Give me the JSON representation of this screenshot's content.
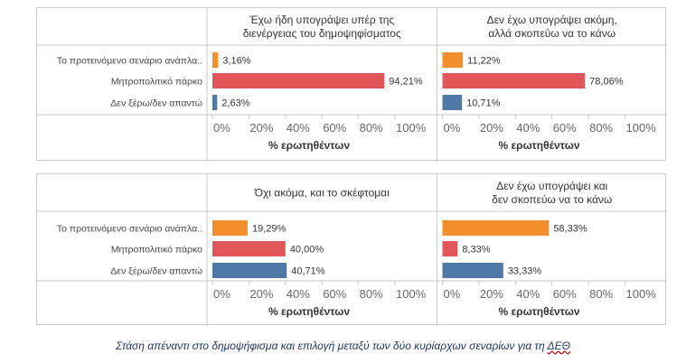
{
  "chart_data": [
    {
      "type": "bar",
      "orientation": "horizontal",
      "title": "Έχω ήδη υπογράψει υπέρ της διενέργειας του δημοψηφίσματος",
      "categories": [
        "Το προτεινόμενο σενάριο ανάπλα..",
        "Μητροπολιτικό πάρκο",
        "Δεν ξέρω/δεν απαντώ"
      ],
      "values": [
        3.16,
        94.21,
        2.63
      ],
      "labels": [
        "3,16%",
        "94,21%",
        "2,63%"
      ],
      "colors": [
        "#f28e2b",
        "#e15759",
        "#4e79a7"
      ],
      "xlabel": "% ερωτηθέντων",
      "xlim": [
        0,
        100
      ],
      "ticks": [
        "0%",
        "20%",
        "40%",
        "60%",
        "80%",
        "100%"
      ],
      "grid": false
    },
    {
      "type": "bar",
      "orientation": "horizontal",
      "title": "Δεν έχω υπογράψει ακόμη, αλλά σκοπεύω να το κάνω",
      "categories": [
        "Το προτεινόμενο σενάριο ανάπλα..",
        "Μητροπολιτικό πάρκο",
        "Δεν ξέρω/δεν απαντώ"
      ],
      "values": [
        11.22,
        78.06,
        10.71
      ],
      "labels": [
        "11,22%",
        "78,06%",
        "10,71%"
      ],
      "colors": [
        "#f28e2b",
        "#e15759",
        "#4e79a7"
      ],
      "xlabel": "% ερωτηθέντων",
      "xlim": [
        0,
        100
      ],
      "ticks": [
        "0%",
        "20%",
        "40%",
        "60%",
        "80%",
        "100%"
      ],
      "grid": false
    },
    {
      "type": "bar",
      "orientation": "horizontal",
      "title": "Όχι ακόμα, και το σκέφτομαι",
      "categories": [
        "Το προτεινόμενο σενάριο ανάπλα..",
        "Μητροπολιτικό πάρκο",
        "Δεν ξέρω/δεν απαντώ"
      ],
      "values": [
        19.29,
        40.0,
        40.71
      ],
      "labels": [
        "19,29%",
        "40,00%",
        "40,71%"
      ],
      "colors": [
        "#f28e2b",
        "#e15759",
        "#4e79a7"
      ],
      "xlabel": "% ερωτηθέντων",
      "xlim": [
        0,
        100
      ],
      "ticks": [
        "0%",
        "20%",
        "40%",
        "60%",
        "80%",
        "100%"
      ],
      "grid": false
    },
    {
      "type": "bar",
      "orientation": "horizontal",
      "title": "Δεν έχω υπογράψει και δεν σκοπεύω να το κάνω",
      "categories": [
        "Το προτεινόμενο σενάριο ανάπλα..",
        "Μητροπολιτικό πάρκο",
        "Δεν ξέρω/δεν απαντώ"
      ],
      "values": [
        58.33,
        8.33,
        33.33
      ],
      "labels": [
        "58,33%",
        "8,33%",
        "33,33%"
      ],
      "colors": [
        "#f28e2b",
        "#e15759",
        "#4e79a7"
      ],
      "xlabel": "% ερωτηθέντων",
      "xlim": [
        0,
        100
      ],
      "ticks": [
        "0%",
        "20%",
        "40%",
        "60%",
        "80%",
        "100%"
      ],
      "grid": false
    }
  ],
  "caption": {
    "text": "Στάση απέναντι στο δημοψήφισμα και επιλογή μεταξύ των δύο κυρίαρχων σεναρίων για τη ",
    "abbr": "ΔΕΘ"
  }
}
